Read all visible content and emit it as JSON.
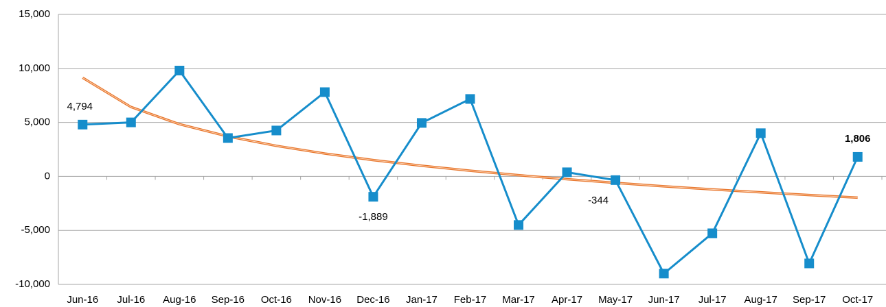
{
  "chart_data": {
    "type": "line",
    "categories": [
      "Jun-16",
      "Jul-16",
      "Aug-16",
      "Sep-16",
      "Oct-16",
      "Nov-16",
      "Dec-16",
      "Jan-17",
      "Feb-17",
      "Mar-17",
      "Apr-17",
      "May-17",
      "Jun-17",
      "Jul-17",
      "Aug-17",
      "Sep-17",
      "Oct-17"
    ],
    "values": [
      4794,
      5000,
      9800,
      3550,
      4250,
      7800,
      -1889,
      4950,
      7170,
      -4500,
      380,
      -344,
      -9000,
      -5270,
      4000,
      -8060,
      1806
    ],
    "value_labels": [
      "4,794",
      null,
      null,
      null,
      null,
      null,
      "-1,889",
      null,
      null,
      null,
      null,
      "-344",
      null,
      null,
      null,
      null,
      "1,806"
    ],
    "color": "#168dcb",
    "trendline": {
      "color": "#e8762c",
      "values": [
        9137,
        6421,
        4832,
        3704,
        2830,
        2115,
        1511,
        988,
        526,
        113,
        -260,
        -601,
        -915,
        -1205,
        -1476,
        -1729,
        -1966
      ]
    },
    "ylim": [
      -10000,
      15000
    ],
    "yticks": [
      {
        "value": -10000,
        "label": "-10,000"
      },
      {
        "value": -5000,
        "label": "-5,000"
      },
      0,
      {
        "value": 5000,
        "label": "5,000"
      },
      {
        "value": 10000,
        "label": "10,000"
      },
      {
        "value": 15000,
        "label": "15,000"
      }
    ],
    "grid": true
  }
}
